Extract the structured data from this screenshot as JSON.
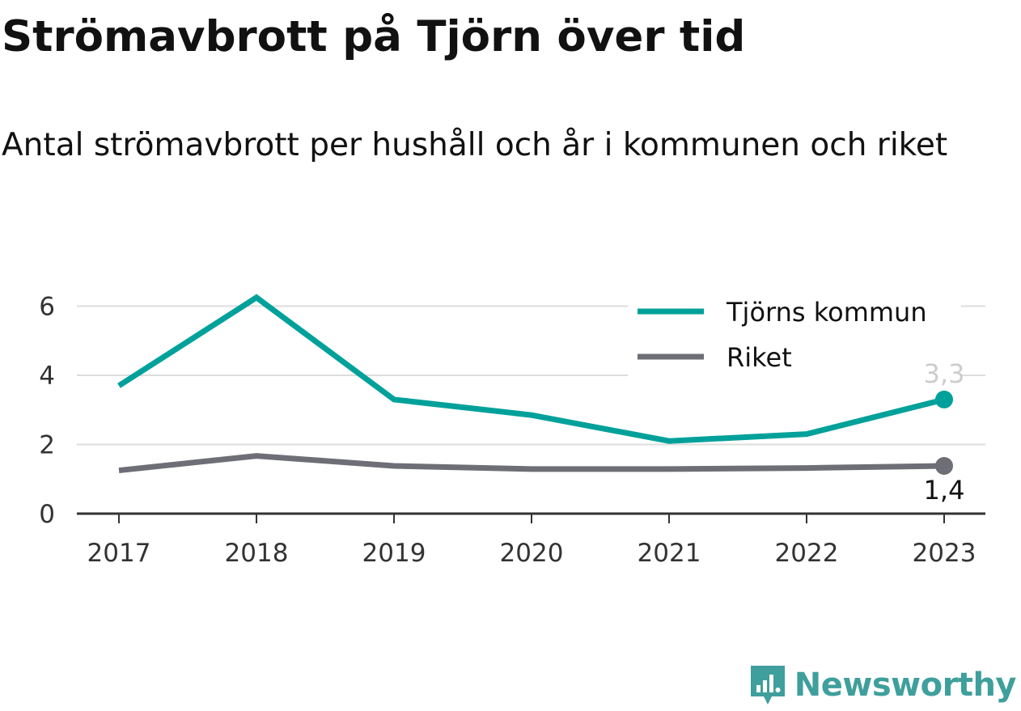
{
  "header": {
    "title": "Strömavbrott på Tjörn över tid",
    "subtitle": "Antal strömavbrott per hushåll och år i kommunen och riket"
  },
  "chart_data": {
    "type": "line",
    "title": "Strömavbrott på Tjörn över tid",
    "subtitle": "Antal strömavbrott per hushåll och år i kommunen och riket",
    "xlabel": "",
    "ylabel": "",
    "x": [
      "2017",
      "2018",
      "2019",
      "2020",
      "2021",
      "2022",
      "2023"
    ],
    "ylim": [
      0,
      6.6
    ],
    "yticks": [
      0,
      2,
      4,
      6
    ],
    "grid": true,
    "legend_position": "top-right",
    "series": [
      {
        "name": "Tjörns kommun",
        "color": "#00a19a",
        "values": [
          3.7,
          6.25,
          3.3,
          2.85,
          2.1,
          2.3,
          3.3
        ],
        "end_label": "3,3",
        "end_label_color": "#cccccc"
      },
      {
        "name": "Riket",
        "color": "#6e6e76",
        "values": [
          1.25,
          1.67,
          1.38,
          1.29,
          1.29,
          1.32,
          1.38
        ],
        "end_label": "1,4",
        "end_label_color": "#111111"
      }
    ]
  },
  "brand": {
    "name": "Newsworthy",
    "logo_icon": "newsworthy-logo-icon",
    "color": "#3f9f9c"
  }
}
